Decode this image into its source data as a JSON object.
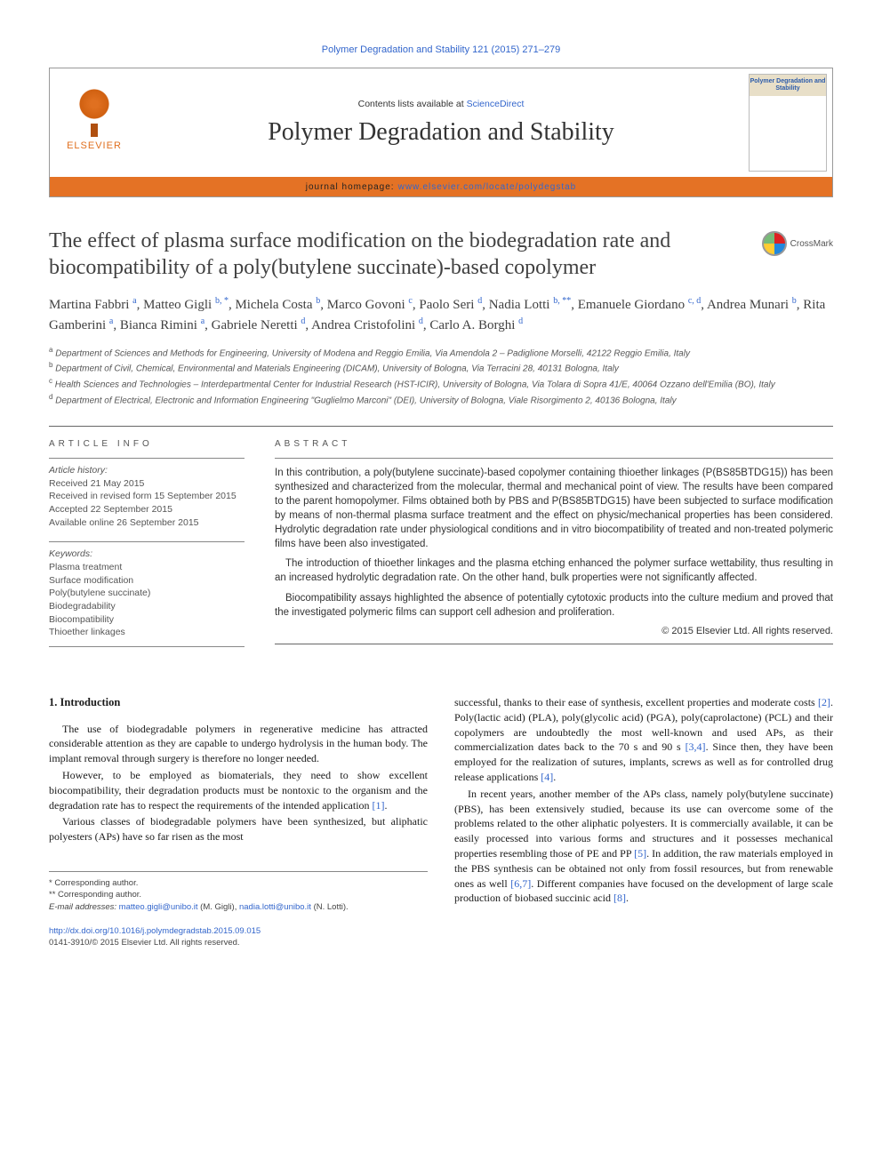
{
  "citation": "Polymer Degradation and Stability 121 (2015) 271–279",
  "header": {
    "contents_prefix": "Contents lists available at ",
    "contents_link": "ScienceDirect",
    "journal_title": "Polymer Degradation and Stability",
    "homepage_label": "journal homepage: ",
    "homepage_url": "www.elsevier.com/locate/polydegstab",
    "publisher": "ELSEVIER",
    "cover_title": "Polymer Degradation and Stability"
  },
  "crossmark_label": "CrossMark",
  "article": {
    "title": "The effect of plasma surface modification on the biodegradation rate and biocompatibility of a poly(butylene succinate)-based copolymer",
    "authors_html": "Martina Fabbri <sup>a</sup>, Matteo Gigli <sup>b, *</sup>, Michela Costa <sup>b</sup>, Marco Govoni <sup>c</sup>, Paolo Seri <sup>d</sup>, Nadia Lotti <sup>b, **</sup>, Emanuele Giordano <sup>c, d</sup>, Andrea Munari <sup>b</sup>, Rita Gamberini <sup>a</sup>, Bianca Rimini <sup>a</sup>, Gabriele Neretti <sup>d</sup>, Andrea Cristofolini <sup>d</sup>, Carlo A. Borghi <sup>d</sup>"
  },
  "affiliations": {
    "a": "Department of Sciences and Methods for Engineering, University of Modena and Reggio Emilia, Via Amendola 2 – Padiglione Morselli, 42122 Reggio Emilia, Italy",
    "b": "Department of Civil, Chemical, Environmental and Materials Engineering (DICAM), University of Bologna, Via Terracini 28, 40131 Bologna, Italy",
    "c": "Health Sciences and Technologies – Interdepartmental Center for Industrial Research (HST-ICIR), University of Bologna, Via Tolara di Sopra 41/E, 40064 Ozzano dell'Emilia (BO), Italy",
    "d": "Department of Electrical, Electronic and Information Engineering \"Guglielmo Marconi\" (DEI), University of Bologna, Viale Risorgimento 2, 40136 Bologna, Italy"
  },
  "article_info": {
    "heading": "ARTICLE INFO",
    "history_label": "Article history:",
    "received": "Received 21 May 2015",
    "revised": "Received in revised form 15 September 2015",
    "accepted": "Accepted 22 September 2015",
    "online": "Available online 26 September 2015",
    "keywords_label": "Keywords:",
    "keywords": [
      "Plasma treatment",
      "Surface modification",
      "Poly(butylene succinate)",
      "Biodegradability",
      "Biocompatibility",
      "Thioether linkages"
    ]
  },
  "abstract": {
    "heading": "ABSTRACT",
    "p1": "In this contribution, a poly(butylene succinate)-based copolymer containing thioether linkages (P(BS85BTDG15)) has been synthesized and characterized from the molecular, thermal and mechanical point of view. The results have been compared to the parent homopolymer. Films obtained both by PBS and P(BS85BTDG15) have been subjected to surface modification by means of non-thermal plasma surface treatment and the effect on physic/mechanical properties has been considered. Hydrolytic degradation rate under physiological conditions and in vitro biocompatibility of treated and non-treated polymeric films have been also investigated.",
    "p2": "The introduction of thioether linkages and the plasma etching enhanced the polymer surface wettability, thus resulting in an increased hydrolytic degradation rate. On the other hand, bulk properties were not significantly affected.",
    "p3": "Biocompatibility assays highlighted the absence of potentially cytotoxic products into the culture medium and proved that the investigated polymeric films can support cell adhesion and proliferation.",
    "copyright": "© 2015 Elsevier Ltd. All rights reserved."
  },
  "body": {
    "section_heading": "1.  Introduction",
    "left": {
      "p1": "The use of biodegradable polymers in regenerative medicine has attracted considerable attention as they are capable to undergo hydrolysis in the human body. The implant removal through surgery is therefore no longer needed.",
      "p2_a": "However, to be employed as biomaterials, they need to show excellent biocompatibility, their degradation products must be nontoxic to the organism and the degradation rate has to respect the requirements of the intended application ",
      "p2_ref": "[1]",
      "p2_b": ".",
      "p3": "Various classes of biodegradable polymers have been synthesized, but aliphatic polyesters (APs) have so far risen as the most"
    },
    "right": {
      "p1_a": "successful, thanks to their ease of synthesis, excellent properties and moderate costs ",
      "p1_ref1": "[2]",
      "p1_b": ". Poly(lactic acid) (PLA), poly(glycolic acid) (PGA), poly(caprolactone) (PCL) and their copolymers are undoubtedly the most well-known and used APs, as their commercialization dates back to the 70 s and 90 s ",
      "p1_ref2": "[3,4]",
      "p1_c": ". Since then, they have been employed for the realization of sutures, implants, screws as well as for controlled drug release applications ",
      "p1_ref3": "[4]",
      "p1_d": ".",
      "p2_a": "In recent years, another member of the APs class, namely poly(butylene succinate) (PBS), has been extensively studied, because its use can overcome some of the problems related to the other aliphatic polyesters. It is commercially available, it can be easily processed into various forms and structures and it possesses mechanical properties resembling those of PE and PP ",
      "p2_ref1": "[5]",
      "p2_b": ". In addition, the raw materials employed in the PBS synthesis can be obtained not only from fossil resources, but from renewable ones as well ",
      "p2_ref2": "[6,7]",
      "p2_c": ". Different companies have focused on the development of large scale production of biobased succinic acid ",
      "p2_ref3": "[8]",
      "p2_d": "."
    }
  },
  "footer": {
    "corr1": "* Corresponding author.",
    "corr2": "** Corresponding author.",
    "email_label": "E-mail addresses: ",
    "email1": "matteo.gigli@unibo.it",
    "email1_name": " (M. Gigli), ",
    "email2": "nadia.lotti@unibo.it",
    "email2_name": " (N. Lotti).",
    "doi": "http://dx.doi.org/10.1016/j.polymdegradstab.2015.09.015",
    "issn_copyright": "0141-3910/© 2015 Elsevier Ltd. All rights reserved."
  },
  "colors": {
    "link": "#3366cc",
    "orange_bar": "#e47225",
    "elsevier_orange": "#e07020",
    "text": "#1a1a1a",
    "muted": "#555"
  }
}
